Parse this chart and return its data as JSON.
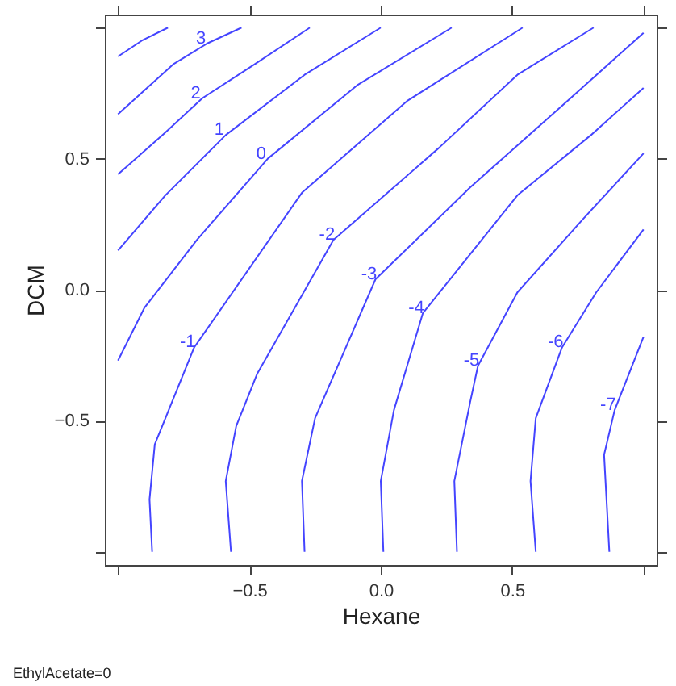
{
  "chart_data": {
    "type": "line",
    "xlabel": "Hexane",
    "ylabel": "DCM",
    "annotations": [
      "EthylAcetate=0"
    ],
    "xlim": [
      -1.05,
      1.05
    ],
    "ylim": [
      -1.05,
      1.05
    ],
    "xticks": [
      {
        "value": -1,
        "label": null
      },
      {
        "value": -0.5,
        "label": "−0.5"
      },
      {
        "value": 0,
        "label": "0.0"
      },
      0.5,
      {
        "value": 1,
        "label": null
      }
    ],
    "yticks": [
      {
        "value": -1,
        "label": null
      },
      {
        "value": -0.5,
        "label": "−0.5"
      },
      {
        "value": 0,
        "label": "0.0"
      },
      0.5,
      {
        "value": 1,
        "label": null
      }
    ],
    "series": [
      {
        "color": "#4444ff",
        "x": [
          -1,
          -0.91,
          -0.81
        ],
        "values": [
          0.89,
          0.95,
          1
        ]
      },
      {
        "name": "3",
        "color": "#4444ff",
        "x": [
          -1,
          -0.79,
          -0.66,
          -0.53
        ],
        "values": [
          0.67,
          0.86,
          0.94,
          1
        ]
      },
      {
        "name": "2",
        "color": "#4444ff",
        "x": [
          -1,
          -0.82,
          -0.68,
          -0.48,
          -0.27
        ],
        "values": [
          0.44,
          0.6,
          0.73,
          0.86,
          1
        ]
      },
      {
        "name": "1",
        "color": "#4444ff",
        "x": [
          -1,
          -0.82,
          -0.59,
          -0.29,
          0
        ],
        "values": [
          0.15,
          0.36,
          0.59,
          0.82,
          1
        ]
      },
      {
        "name": "0",
        "color": "#4444ff",
        "x": [
          -1,
          -0.9,
          -0.7,
          -0.43,
          -0.09,
          0.27
        ],
        "values": [
          -0.27,
          -0.07,
          0.19,
          0.5,
          0.78,
          1
        ]
      },
      {
        "name": "-1",
        "color": "#4444ff",
        "x": [
          -0.87,
          -0.88,
          -0.86,
          -0.71,
          -0.3,
          0.1,
          0.54
        ],
        "values": [
          -1,
          -0.8,
          -0.59,
          -0.22,
          0.37,
          0.72,
          1
        ]
      },
      {
        "name": "-2",
        "color": "#4444ff",
        "x": [
          -0.57,
          -0.59,
          -0.55,
          -0.47,
          -0.18,
          0.22,
          0.52,
          0.81
        ],
        "values": [
          -1,
          -0.73,
          -0.52,
          -0.32,
          0.19,
          0.54,
          0.82,
          1
        ]
      },
      {
        "name": "-3",
        "color": "#4444ff",
        "x": [
          -0.29,
          -0.3,
          -0.25,
          -0.15,
          -0.02,
          0.34,
          0.71,
          1
        ],
        "values": [
          -1,
          -0.73,
          -0.49,
          -0.26,
          0.04,
          0.39,
          0.72,
          0.98
        ]
      },
      {
        "name": "-4",
        "color": "#4444ff",
        "x": [
          0.01,
          0,
          0.05,
          0.16,
          0.52,
          0.8,
          1
        ],
        "values": [
          -1,
          -0.73,
          -0.46,
          -0.09,
          0.36,
          0.59,
          0.77
        ]
      },
      {
        "name": "-5",
        "color": "#4444ff",
        "x": [
          0.29,
          0.28,
          0.34,
          0.37,
          0.52,
          0.77,
          1
        ],
        "values": [
          -1,
          -0.73,
          -0.43,
          -0.29,
          -0.01,
          0.27,
          0.52
        ]
      },
      {
        "name": "-6",
        "color": "#4444ff",
        "x": [
          0.59,
          0.57,
          0.59,
          0.69,
          0.82,
          1
        ],
        "values": [
          -1,
          -0.73,
          -0.49,
          -0.22,
          -0.01,
          0.23
        ]
      },
      {
        "name": "-7",
        "color": "#4444ff",
        "x": [
          0.87,
          0.85,
          0.89,
          1
        ],
        "values": [
          -1,
          -0.63,
          -0.46,
          -0.18
        ]
      }
    ]
  }
}
